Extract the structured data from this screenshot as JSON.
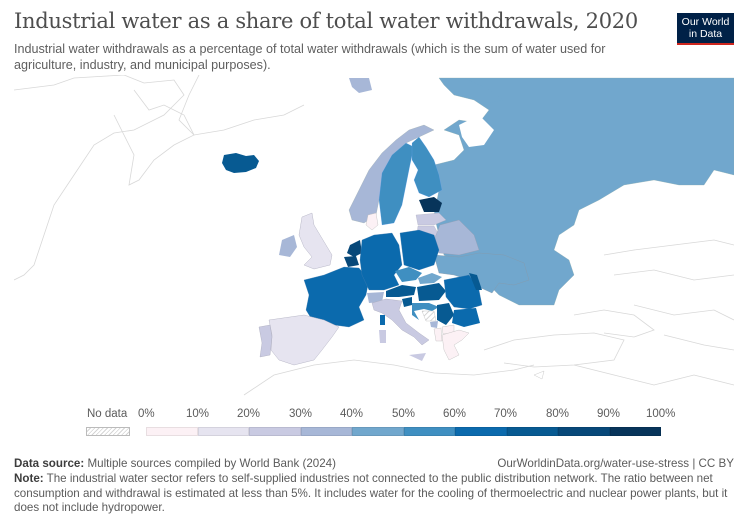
{
  "header": {
    "title": "Industrial water as a share of total water withdrawals, 2020",
    "subtitle": "Industrial water withdrawals as a percentage of total water withdrawals (which is the sum of water used for agriculture, industry, and municipal purposes).",
    "logo_line1": "Our World",
    "logo_line2": "in Data"
  },
  "legend": {
    "no_data_label": "No data",
    "ticks": [
      "0%",
      "10%",
      "20%",
      "30%",
      "40%",
      "50%",
      "60%",
      "70%",
      "80%",
      "90%",
      "100%"
    ],
    "bins": [
      {
        "range": "0-10%",
        "color": "#fcf1f5"
      },
      {
        "range": "10-20%",
        "color": "#e6e4f0"
      },
      {
        "range": "20-30%",
        "color": "#c9cae2"
      },
      {
        "range": "30-40%",
        "color": "#a7b7d7"
      },
      {
        "range": "40-50%",
        "color": "#71a7cd"
      },
      {
        "range": "50-60%",
        "color": "#3f8fc1"
      },
      {
        "range": "60-70%",
        "color": "#0b6aad"
      },
      {
        "range": "70-80%",
        "color": "#075a92"
      },
      {
        "range": "80-90%",
        "color": "#074879"
      },
      {
        "range": "90-100%",
        "color": "#07345a"
      }
    ]
  },
  "chart_data": {
    "type": "choropleth",
    "title": "Industrial water as a share of total water withdrawals, 2020",
    "region": "Europe",
    "unit": "%",
    "scale_bins": [
      0,
      10,
      20,
      30,
      40,
      50,
      60,
      70,
      80,
      90,
      100
    ],
    "countries": [
      {
        "name": "Iceland",
        "bin": "70-80%"
      },
      {
        "name": "Norway",
        "bin": "30-40%"
      },
      {
        "name": "Sweden",
        "bin": "50-60%"
      },
      {
        "name": "Finland",
        "bin": "50-60%"
      },
      {
        "name": "Russia",
        "bin": "40-50%"
      },
      {
        "name": "Estonia",
        "bin": "90-100%"
      },
      {
        "name": "Latvia",
        "bin": "20-30%"
      },
      {
        "name": "Lithuania",
        "bin": "20-30%"
      },
      {
        "name": "Belarus",
        "bin": "30-40%"
      },
      {
        "name": "Ukraine",
        "bin": "40-50%"
      },
      {
        "name": "United Kingdom",
        "bin": "10-20%"
      },
      {
        "name": "Ireland",
        "bin": "30-40%"
      },
      {
        "name": "Denmark",
        "bin": "0-10%"
      },
      {
        "name": "Netherlands",
        "bin": "70-80%"
      },
      {
        "name": "Belgium",
        "bin": "80-90%"
      },
      {
        "name": "France",
        "bin": "60-70%"
      },
      {
        "name": "Germany",
        "bin": "60-70%"
      },
      {
        "name": "Poland",
        "bin": "60-70%"
      },
      {
        "name": "Czechia",
        "bin": "50-60%"
      },
      {
        "name": "Slovakia",
        "bin": "40-50%"
      },
      {
        "name": "Austria",
        "bin": "70-80%"
      },
      {
        "name": "Slovenia",
        "bin": "70-80%"
      },
      {
        "name": "Hungary",
        "bin": "70-80%"
      },
      {
        "name": "Romania",
        "bin": "60-70%"
      },
      {
        "name": "Moldova",
        "bin": "70-80%"
      },
      {
        "name": "Serbia",
        "bin": "70-80%"
      },
      {
        "name": "Bulgaria",
        "bin": "60-70%"
      },
      {
        "name": "Croatia",
        "bin": "50-60%"
      },
      {
        "name": "Bosnia and Herzegovina",
        "bin": "No data"
      },
      {
        "name": "Switzerland",
        "bin": "30-40%"
      },
      {
        "name": "Italy",
        "bin": "20-30%"
      },
      {
        "name": "Spain",
        "bin": "10-20%"
      },
      {
        "name": "Portugal",
        "bin": "20-30%"
      },
      {
        "name": "Greece",
        "bin": "0-10%"
      },
      {
        "name": "Albania",
        "bin": "0-10%"
      },
      {
        "name": "North Macedonia",
        "bin": "0-10%"
      },
      {
        "name": "Montenegro",
        "bin": "30-40%"
      }
    ]
  },
  "footer": {
    "source_label": "Data source:",
    "source_text": "Multiple sources compiled by World Bank (2024)",
    "url": "OurWorldinData.org/water-use-stress | CC BY",
    "note_label": "Note:",
    "note_text": "The industrial water sector refers to self-supplied industries not connected to the public distribution network. The ratio between net consumption and withdrawal is estimated at less than 5%. It includes water for the cooling of thermoelectric and nuclear power plants, but it does not include hydropower."
  }
}
